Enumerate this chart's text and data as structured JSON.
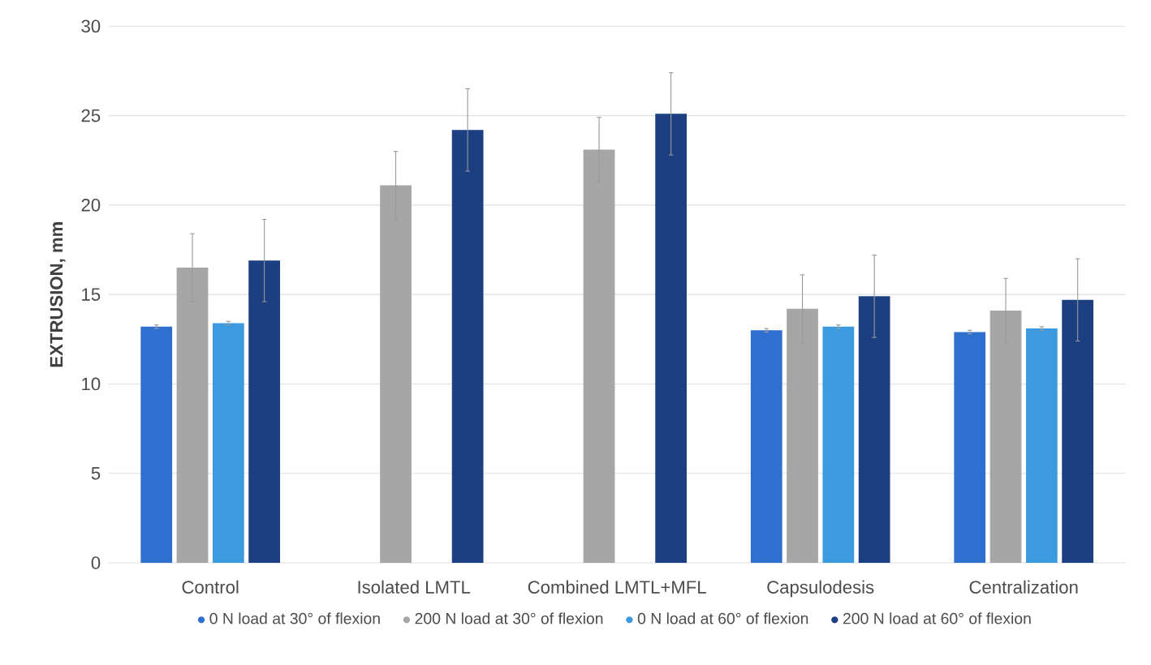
{
  "chart_data": {
    "type": "bar",
    "ylabel": "EXTRUSION, mm",
    "categories": [
      "Control",
      "Isolated LMTL",
      "Combined LMTL+MFL",
      "Capsulodesis",
      "Centralization"
    ],
    "series": [
      {
        "name": "0 N load at 30° of flexion",
        "color": "#2e6fd0",
        "values": [
          13.2,
          null,
          null,
          13.0,
          12.9
        ],
        "errors": [
          0.1,
          null,
          null,
          0.1,
          0.1
        ]
      },
      {
        "name": "200 N load at 30° of flexion",
        "color": "#a6a6a6",
        "values": [
          16.5,
          21.1,
          23.1,
          14.2,
          14.1
        ],
        "errors": [
          1.9,
          1.9,
          1.8,
          1.9,
          1.8
        ]
      },
      {
        "name": "0 N load at 60° of flexion",
        "color": "#3c9ade",
        "values": [
          13.4,
          null,
          null,
          13.2,
          13.1
        ],
        "errors": [
          0.1,
          null,
          null,
          0.1,
          0.1
        ]
      },
      {
        "name": "200 N load at 60° of flexion",
        "color": "#1b3f80",
        "values": [
          16.9,
          24.2,
          25.1,
          14.9,
          14.7
        ],
        "errors": [
          2.3,
          2.3,
          2.3,
          2.3,
          2.3
        ]
      }
    ],
    "ylim": [
      0,
      30
    ],
    "yticks": [
      0,
      5,
      10,
      15,
      20,
      25,
      30
    ],
    "grid": "y",
    "legend": "bottom"
  }
}
